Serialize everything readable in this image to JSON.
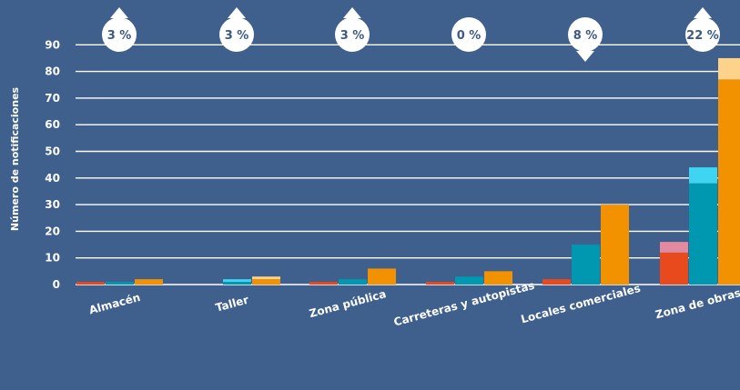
{
  "colors": {
    "background": "#3f5f8d",
    "grid": "#ffffff",
    "text": "#ffffff",
    "badge_fill": "#ffffff",
    "badge_text": "#3b5a86",
    "series_colors": {
      "red": "#e8491d",
      "pink": "#e38aa0",
      "teal": "#0098b0",
      "cyan": "#3fd5f2",
      "orange": "#f29200",
      "light_orange": "#fdd28a"
    }
  },
  "chart_data": {
    "type": "bar",
    "ylabel": "Número de notificaciones",
    "xlabel": "",
    "ylim": [
      0,
      90
    ],
    "yticks": [
      0,
      10,
      20,
      30,
      40,
      50,
      60,
      70,
      80,
      90
    ],
    "grid": true,
    "categories": [
      "Almacén",
      "Taller",
      "Zona pública",
      "Carreteras y autopistas",
      "Locales comerciales",
      "Zona de obras"
    ],
    "series": [
      {
        "group": "red",
        "base": [
          1,
          0,
          1,
          1,
          2,
          12
        ],
        "top": [
          0,
          0,
          0,
          0,
          0,
          4
        ],
        "base_color": "red",
        "top_color": "pink"
      },
      {
        "group": "teal",
        "base": [
          1,
          1,
          2,
          3,
          15,
          38
        ],
        "top": [
          0,
          1,
          0,
          0,
          0,
          6
        ],
        "base_color": "teal",
        "top_color": "cyan"
      },
      {
        "group": "orange",
        "base": [
          2,
          2,
          6,
          5,
          30,
          77
        ],
        "top": [
          0,
          1,
          0,
          0,
          0,
          8
        ],
        "base_color": "orange",
        "top_color": "light_orange"
      }
    ],
    "annotations": [
      {
        "text": "3 %",
        "arrow": "up"
      },
      {
        "text": "3 %",
        "arrow": "up"
      },
      {
        "text": "3 %",
        "arrow": "up"
      },
      {
        "text": "0 %",
        "arrow": "none"
      },
      {
        "text": "8 %",
        "arrow": "down"
      },
      {
        "text": "22 %",
        "arrow": "up"
      }
    ]
  }
}
